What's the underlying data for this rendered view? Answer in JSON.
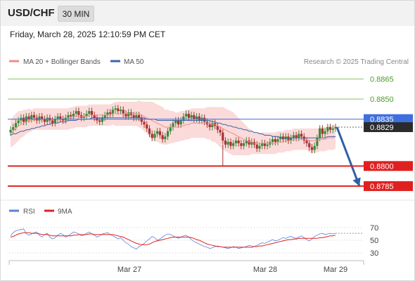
{
  "header": {
    "symbol": "USD/CHF",
    "timeframe": "30 MIN"
  },
  "timestamp": "Friday, March 28, 2025 12:10:59 PM CET",
  "legend": {
    "ma20": "MA 20 + Bollinger Bands",
    "ma50": "MA 50",
    "credit": "Research © 2025 Trading Central"
  },
  "rsi_legend": {
    "rsi": "RSI",
    "ma9": "9MA"
  },
  "colors": {
    "ma20": "#f28c8c",
    "ma50": "#3c64a8",
    "rsi": "#5b7fd6",
    "ma9": "#e02020",
    "resistance": "#8cc063",
    "support": "#e02020",
    "pivot": "#3f6fdc",
    "current": "#2b2b2b",
    "arrow": "#2f5fa5",
    "candle_up": "#3a8a3a",
    "candle_down": "#a83232",
    "band": "#fbdada"
  },
  "chart_data": [
    {
      "type": "candlestick",
      "ylim": [
        0.8775,
        0.8872
      ],
      "levels": [
        {
          "value": 0.8865,
          "label": "0.8865",
          "kind": "resistance"
        },
        {
          "value": 0.885,
          "label": "0.8850",
          "kind": "resistance"
        },
        {
          "value": 0.8835,
          "label": "0.8835",
          "kind": "pivot"
        },
        {
          "value": 0.8829,
          "label": "0.8829",
          "kind": "current"
        },
        {
          "value": 0.88,
          "label": "0.8800",
          "kind": "support"
        },
        {
          "value": 0.8785,
          "label": "0.8785",
          "kind": "support"
        }
      ],
      "x_ticks": [
        "Mar 27",
        "Mar 28",
        "Mar 29"
      ],
      "series_close": [
        0.8827,
        0.8829,
        0.8832,
        0.8834,
        0.8836,
        0.8833,
        0.8837,
        0.8835,
        0.8838,
        0.8836,
        0.8834,
        0.8837,
        0.8835,
        0.8833,
        0.8836,
        0.8834,
        0.8832,
        0.8835,
        0.8837,
        0.8835,
        0.8834,
        0.8836,
        0.8838,
        0.8837,
        0.8839,
        0.8841,
        0.8838,
        0.8836,
        0.8837,
        0.8839,
        0.8841,
        0.8838,
        0.8836,
        0.8834,
        0.8833,
        0.8836,
        0.8838,
        0.884,
        0.8839,
        0.8842,
        0.8843,
        0.8841,
        0.8842,
        0.8839,
        0.8837,
        0.884,
        0.8838,
        0.8836,
        0.8838,
        0.8836,
        0.8833,
        0.8831,
        0.8828,
        0.8824,
        0.8821,
        0.8824,
        0.8826,
        0.8823,
        0.882,
        0.8822,
        0.8826,
        0.8829,
        0.8832,
        0.8834,
        0.8831,
        0.8834,
        0.8837,
        0.8839,
        0.8836,
        0.8838,
        0.8835,
        0.8837,
        0.8834,
        0.8836,
        0.8833,
        0.8831,
        0.8829,
        0.8832,
        0.883,
        0.8827,
        0.8825,
        0.8819,
        0.8816,
        0.8818,
        0.8815,
        0.8817,
        0.8819,
        0.8817,
        0.8815,
        0.8817,
        0.8819,
        0.8816,
        0.8818,
        0.8816,
        0.8813,
        0.8815,
        0.8817,
        0.8815,
        0.8816,
        0.8818,
        0.882,
        0.8818,
        0.882,
        0.8822,
        0.882,
        0.8822,
        0.8819,
        0.8821,
        0.8823,
        0.8821,
        0.8824,
        0.8822,
        0.8819,
        0.8817,
        0.8814,
        0.8812,
        0.8815,
        0.8821,
        0.8828,
        0.8824,
        0.8826,
        0.8829,
        0.8827,
        0.8828,
        0.8829
      ],
      "ma20": [
        0.8824,
        0.8826,
        0.8828,
        0.883,
        0.8831,
        0.8832,
        0.8833,
        0.8834,
        0.8834,
        0.8835,
        0.8835,
        0.8835,
        0.8835,
        0.8835,
        0.8835,
        0.8835,
        0.8835,
        0.8835,
        0.8835,
        0.8835,
        0.8835,
        0.8835,
        0.8835,
        0.8836,
        0.8836,
        0.8837,
        0.8837,
        0.8837,
        0.8837,
        0.8837,
        0.8838,
        0.8838,
        0.8838,
        0.8838,
        0.8838,
        0.8838,
        0.8838,
        0.8838,
        0.8838,
        0.8839,
        0.8839,
        0.8839,
        0.8839,
        0.8839,
        0.8839,
        0.8839,
        0.8839,
        0.8839,
        0.8839,
        0.8839,
        0.8838,
        0.8837,
        0.8836,
        0.8835,
        0.8834,
        0.8833,
        0.8832,
        0.8831,
        0.883,
        0.8829,
        0.8829,
        0.8829,
        0.8829,
        0.8829,
        0.8829,
        0.883,
        0.883,
        0.8831,
        0.8831,
        0.8832,
        0.8832,
        0.8832,
        0.8832,
        0.8832,
        0.8832,
        0.8832,
        0.8832,
        0.8831,
        0.8831,
        0.883,
        0.8829,
        0.8828,
        0.8827,
        0.8826,
        0.8825,
        0.8824,
        0.8823,
        0.8822,
        0.8821,
        0.882,
        0.8819,
        0.8818,
        0.8818,
        0.8817,
        0.8817,
        0.8817,
        0.8817,
        0.8817,
        0.8817,
        0.8817,
        0.8817,
        0.8817,
        0.8818,
        0.8818,
        0.8818,
        0.8819,
        0.8819,
        0.8819,
        0.882,
        0.882,
        0.882,
        0.882,
        0.882,
        0.882,
        0.8819,
        0.8819,
        0.8819,
        0.8819,
        0.882,
        0.882,
        0.882,
        0.8821,
        0.8821,
        0.8821,
        0.8822
      ],
      "bb_width": [
        0.001,
        0.0011,
        0.0011,
        0.0011,
        0.001,
        0.001,
        0.0009,
        0.0009,
        0.0008,
        0.0008,
        0.0008,
        0.0008,
        0.0008,
        0.0008,
        0.0008,
        0.0008,
        0.0008,
        0.0008,
        0.0008,
        0.0008,
        0.0008,
        0.0008,
        0.0008,
        0.0008,
        0.0008,
        0.0008,
        0.0008,
        0.0008,
        0.0008,
        0.0008,
        0.0008,
        0.0008,
        0.0008,
        0.0008,
        0.0008,
        0.0008,
        0.0008,
        0.0008,
        0.0008,
        0.0008,
        0.0009,
        0.0009,
        0.0009,
        0.0009,
        0.0009,
        0.0009,
        0.0009,
        0.0009,
        0.0009,
        0.001,
        0.001,
        0.0011,
        0.0012,
        0.0013,
        0.0014,
        0.0014,
        0.0014,
        0.0014,
        0.0014,
        0.0013,
        0.0013,
        0.0012,
        0.0012,
        0.0011,
        0.0011,
        0.0011,
        0.0011,
        0.0011,
        0.0011,
        0.0011,
        0.0011,
        0.0011,
        0.0011,
        0.0011,
        0.0011,
        0.0012,
        0.0012,
        0.0013,
        0.0013,
        0.0014,
        0.0015,
        0.0016,
        0.0016,
        0.0016,
        0.0016,
        0.0016,
        0.0015,
        0.0014,
        0.0013,
        0.0012,
        0.0011,
        0.001,
        0.0009,
        0.0008,
        0.0008,
        0.0008,
        0.0008,
        0.0008,
        0.0008,
        0.0008,
        0.0008,
        0.0008,
        0.0008,
        0.0008,
        0.0008,
        0.0008,
        0.0008,
        0.0008,
        0.0008,
        0.0008,
        0.0008,
        0.0008,
        0.0008,
        0.0008,
        0.0009,
        0.0009,
        0.0009,
        0.0009,
        0.0009,
        0.0009,
        0.0009,
        0.0009,
        0.0009,
        0.0009,
        0.0009
      ],
      "ma50": [
        0.8823,
        0.8824,
        0.8824,
        0.8825,
        0.8826,
        0.8826,
        0.8827,
        0.8827,
        0.8828,
        0.8828,
        0.8829,
        0.8829,
        0.883,
        0.883,
        0.8831,
        0.8831,
        0.8832,
        0.8832,
        0.8832,
        0.8833,
        0.8833,
        0.8833,
        0.8834,
        0.8834,
        0.8834,
        0.8834,
        0.8835,
        0.8835,
        0.8835,
        0.8835,
        0.8835,
        0.8836,
        0.8836,
        0.8836,
        0.8836,
        0.8836,
        0.8836,
        0.8836,
        0.8836,
        0.8836,
        0.8836,
        0.8836,
        0.8836,
        0.8836,
        0.8836,
        0.8836,
        0.8836,
        0.8836,
        0.8836,
        0.8836,
        0.8836,
        0.8836,
        0.8835,
        0.8835,
        0.8835,
        0.8835,
        0.8834,
        0.8834,
        0.8834,
        0.8834,
        0.8834,
        0.8834,
        0.8834,
        0.8834,
        0.8834,
        0.8834,
        0.8834,
        0.8834,
        0.8834,
        0.8834,
        0.8834,
        0.8834,
        0.8834,
        0.8834,
        0.8834,
        0.8834,
        0.8834,
        0.8833,
        0.8833,
        0.8832,
        0.8832,
        0.8831,
        0.8831,
        0.883,
        0.883,
        0.8829,
        0.8829,
        0.8828,
        0.8828,
        0.8827,
        0.8827,
        0.8826,
        0.8826,
        0.8825,
        0.8825,
        0.8824,
        0.8824,
        0.8823,
        0.8823,
        0.8823,
        0.8822,
        0.8822,
        0.8822,
        0.8821,
        0.8821,
        0.8821,
        0.8821,
        0.8821,
        0.8821,
        0.8821,
        0.8821,
        0.8821,
        0.8821,
        0.8821,
        0.8821,
        0.8821,
        0.8821,
        0.8821,
        0.8821,
        0.8821,
        0.8821,
        0.8822,
        0.8822,
        0.8822,
        0.8822
      ]
    },
    {
      "type": "line",
      "ylim": [
        20,
        80
      ],
      "y_ticks": [
        70,
        50,
        30
      ],
      "series": [
        {
          "name": "RSI",
          "values": [
            57,
            62,
            65,
            66,
            67,
            68,
            60,
            58,
            60,
            62,
            63,
            58,
            55,
            59,
            61,
            55,
            52,
            54,
            58,
            61,
            59,
            55,
            57,
            60,
            63,
            62,
            60,
            57,
            58,
            61,
            63,
            60,
            58,
            55,
            57,
            60,
            61,
            62,
            59,
            57,
            55,
            52,
            54,
            50,
            46,
            44,
            40,
            38,
            36,
            40,
            42,
            45,
            49,
            52,
            56,
            54,
            50,
            52,
            55,
            58,
            60,
            59,
            57,
            55,
            53,
            55,
            57,
            58,
            55,
            51,
            48,
            46,
            44,
            42,
            40,
            39,
            37,
            38,
            40,
            41,
            40,
            39,
            38,
            37,
            38,
            40,
            39,
            37,
            38,
            39,
            40,
            42,
            41,
            40,
            42,
            44,
            46,
            45,
            47,
            49,
            51,
            49,
            50,
            52,
            54,
            53,
            55,
            56,
            54,
            53,
            55,
            57,
            54,
            51,
            49,
            52,
            56,
            58,
            60,
            61,
            59,
            60,
            61,
            60,
            61
          ]
        },
        {
          "name": "9MA",
          "values": [
            55,
            56,
            58,
            60,
            61,
            62,
            62,
            62,
            61,
            61,
            61,
            60,
            59,
            59,
            59,
            58,
            57,
            57,
            57,
            57,
            57,
            57,
            57,
            57,
            58,
            58,
            59,
            59,
            59,
            59,
            60,
            60,
            59,
            59,
            59,
            59,
            59,
            59,
            59,
            59,
            58,
            57,
            56,
            55,
            53,
            51,
            49,
            47,
            45,
            44,
            43,
            43,
            43,
            44,
            46,
            48,
            49,
            50,
            51,
            52,
            53,
            54,
            55,
            55,
            55,
            55,
            55,
            55,
            55,
            54,
            53,
            51,
            50,
            48,
            46,
            44,
            43,
            42,
            41,
            40,
            40,
            39,
            39,
            39,
            39,
            39,
            39,
            39,
            39,
            39,
            39,
            39,
            39,
            40,
            40,
            41,
            41,
            42,
            43,
            44,
            45,
            46,
            47,
            48,
            49,
            50,
            51,
            51,
            52,
            52,
            53,
            53,
            53,
            53,
            53,
            53,
            53,
            53,
            54,
            54,
            55,
            56,
            57,
            57,
            58
          ]
        }
      ]
    }
  ]
}
